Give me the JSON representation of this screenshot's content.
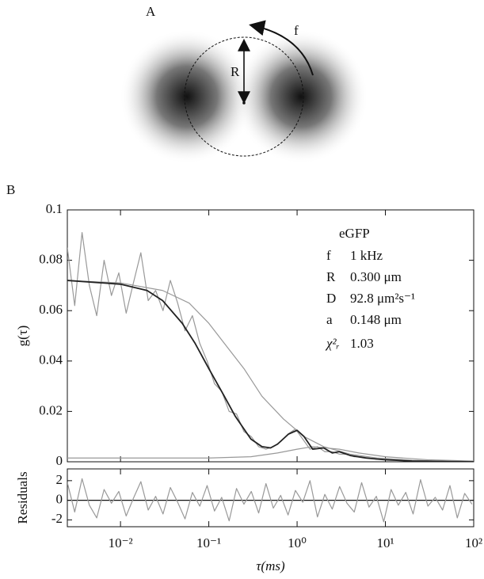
{
  "figure": {
    "panel_a_label": "A",
    "panel_b_label": "B",
    "diagram_labels": {
      "radius": "R",
      "frequency": "f"
    },
    "annotations": {
      "title": "eGFP",
      "rows": [
        [
          "f",
          "1 kHz"
        ],
        [
          "R",
          "0.300 μm"
        ],
        [
          "D",
          "92.8 μm²s⁻¹"
        ],
        [
          "a",
          "0.148 μm"
        ],
        [
          "χ²ᵣ",
          "1.03"
        ]
      ]
    }
  },
  "chart_data": [
    {
      "type": "line",
      "y_label": "g(τ)",
      "log_x": true,
      "xlim": [
        0.0025,
        100
      ],
      "xticks": [
        0.01,
        0.1,
        1,
        10,
        100
      ],
      "ylim": [
        0,
        0.1
      ],
      "yticks": [
        0,
        0.02,
        0.04,
        0.06,
        0.08,
        0.1
      ],
      "series": [
        {
          "color": "#999999",
          "width": 1.2,
          "x": [
            0.0025,
            0.00303,
            0.00367,
            0.00444,
            0.00538,
            0.00652,
            0.0079,
            0.00957,
            0.0116,
            0.014,
            0.017,
            0.0206,
            0.025,
            0.0303,
            0.0367,
            0.0444,
            0.0538,
            0.0652,
            0.079,
            0.0957,
            0.116,
            0.14,
            0.17,
            0.206,
            0.25,
            0.303,
            0.367,
            0.444,
            0.538,
            0.652,
            0.79,
            0.957,
            1.16,
            1.4,
            1.7,
            2.06,
            2.5,
            3.03,
            3.67,
            4.44,
            5.38,
            6.52,
            7.9,
            9.57,
            11.6,
            14,
            17,
            20.6,
            25,
            30.3,
            36.7,
            44.4,
            53.8,
            65.2,
            79,
            95.7
          ],
          "values": [
            0.085,
            0.062,
            0.091,
            0.07,
            0.058,
            0.08,
            0.066,
            0.075,
            0.059,
            0.071,
            0.083,
            0.064,
            0.068,
            0.06,
            0.072,
            0.063,
            0.052,
            0.058,
            0.047,
            0.04,
            0.031,
            0.028,
            0.02,
            0.019,
            0.012,
            0.01,
            0.006,
            0.005,
            0.006,
            0.008,
            0.011,
            0.013,
            0.009,
            0.005,
            0.006,
            0.004,
            0.004,
            0.003,
            0.003,
            0.002,
            0.002,
            0.0015,
            0.001,
            0.001,
            0.0008,
            0.0005,
            0.0004,
            0.0003,
            0.0003,
            0.0002,
            0.0001,
            0.0002,
            0.0001,
            0,
            0.0001,
            0
          ]
        },
        {
          "color": "#999999",
          "width": 1.2,
          "x": [
            0.0025,
            0.01,
            0.03,
            0.06,
            0.1,
            0.15,
            0.25,
            0.4,
            0.7,
            1.2,
            2,
            4,
            8,
            20,
            50,
            100
          ],
          "values": [
            0.072,
            0.071,
            0.068,
            0.063,
            0.055,
            0.047,
            0.037,
            0.026,
            0.017,
            0.01,
            0.006,
            0.003,
            0.0015,
            0.0006,
            0.0002,
            0.0001
          ]
        },
        {
          "color": "#999999",
          "width": 1.2,
          "x": [
            0.0025,
            0.1,
            0.3,
            0.6,
            1,
            1.5,
            3,
            5,
            10,
            30,
            100
          ],
          "values": [
            0.0015,
            0.0015,
            0.002,
            0.0035,
            0.005,
            0.006,
            0.005,
            0.0035,
            0.002,
            0.0008,
            0.0003
          ]
        },
        {
          "color": "#222222",
          "width": 1.8,
          "x": [
            0.0025,
            0.01,
            0.02,
            0.03,
            0.05,
            0.07,
            0.1,
            0.15,
            0.2,
            0.3,
            0.4,
            0.5,
            0.6,
            0.8,
            1,
            1.2,
            1.5,
            2,
            2.5,
            3,
            4,
            6,
            10,
            20,
            50,
            100
          ],
          "values": [
            0.072,
            0.0705,
            0.068,
            0.064,
            0.055,
            0.047,
            0.037,
            0.026,
            0.018,
            0.009,
            0.006,
            0.0055,
            0.007,
            0.011,
            0.0125,
            0.01,
            0.005,
            0.0055,
            0.0035,
            0.004,
            0.0025,
            0.0015,
            0.0008,
            0.0003,
            0.0001,
            0
          ]
        }
      ]
    },
    {
      "type": "line",
      "y_label": "Residuals",
      "log_x": true,
      "x_label": "τ(ms)",
      "xlim": [
        0.0025,
        100
      ],
      "xticks": [
        {
          "value": 0.01,
          "label": "10⁻²"
        },
        {
          "value": 0.1,
          "label": "10⁻¹"
        },
        {
          "value": 1,
          "label": "10⁰"
        },
        {
          "value": 10,
          "label": "10¹"
        },
        {
          "value": 100,
          "label": "10²"
        }
      ],
      "ylim": [
        -2.7,
        3.2
      ],
      "yticks": [
        -2,
        0,
        2
      ],
      "hline": 0,
      "series": [
        {
          "color": "#999999",
          "width": 1.2,
          "x": [
            0.0025,
            0.00303,
            0.00367,
            0.00444,
            0.00538,
            0.00652,
            0.0079,
            0.00957,
            0.0116,
            0.014,
            0.017,
            0.0206,
            0.025,
            0.0303,
            0.0367,
            0.0444,
            0.0538,
            0.0652,
            0.079,
            0.0957,
            0.116,
            0.14,
            0.17,
            0.206,
            0.25,
            0.303,
            0.367,
            0.444,
            0.538,
            0.652,
            0.79,
            0.957,
            1.16,
            1.4,
            1.7,
            2.06,
            2.5,
            3.03,
            3.67,
            4.44,
            5.38,
            6.52,
            7.9,
            9.57,
            11.6,
            14,
            17,
            20.6,
            25,
            30.3,
            36.7,
            44.4,
            53.8,
            65.2,
            79,
            95.7
          ],
          "values": [
            1.8,
            -1.2,
            2.2,
            -0.5,
            -1.8,
            1.1,
            -0.3,
            0.9,
            -1.6,
            0.2,
            1.9,
            -1.0,
            0.4,
            -1.4,
            1.3,
            -0.2,
            -1.9,
            0.8,
            -0.6,
            1.5,
            -1.1,
            0.3,
            -2.1,
            1.2,
            -0.4,
            0.9,
            -1.3,
            1.7,
            -0.8,
            0.5,
            -1.5,
            1.0,
            -0.2,
            2.0,
            -1.7,
            0.6,
            -0.9,
            1.4,
            -0.3,
            -1.2,
            1.8,
            -0.7,
            0.4,
            -2.2,
            1.1,
            -0.5,
            0.8,
            -1.4,
            2.1,
            -0.6,
            0.3,
            -1.0,
            1.5,
            -1.8,
            0.7,
            -0.4
          ]
        }
      ]
    }
  ]
}
